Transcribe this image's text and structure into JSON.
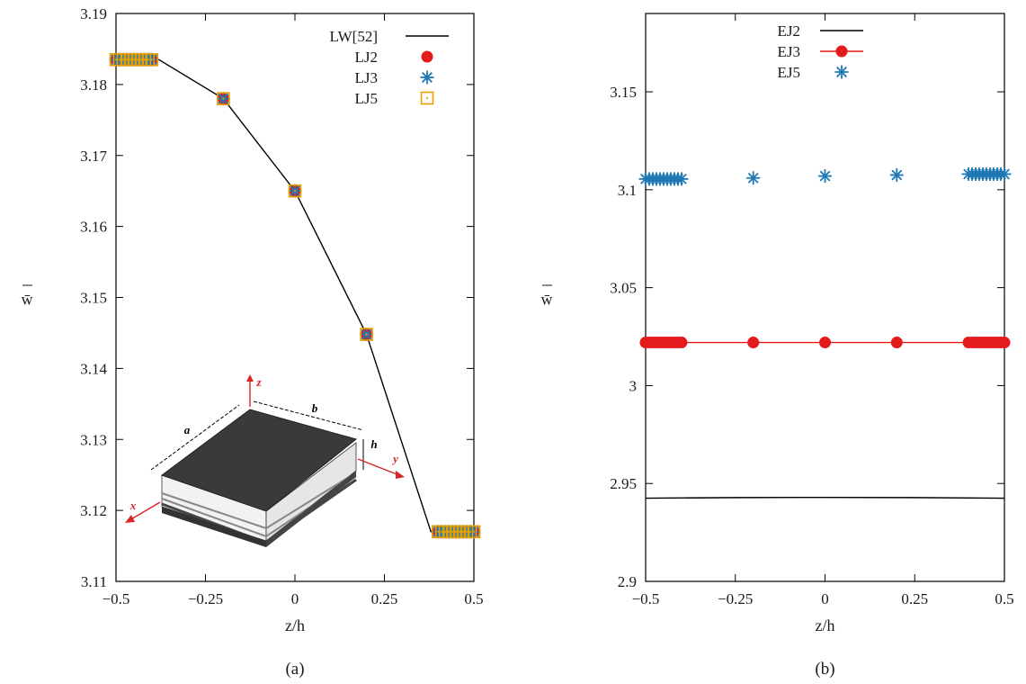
{
  "chart_data": [
    {
      "type": "line",
      "panel_label": "(a)",
      "xlabel": "z/h",
      "ylabel": "w̄",
      "xlim": [
        -0.5,
        0.5
      ],
      "ylim": [
        3.11,
        3.19
      ],
      "xticks": [
        -0.5,
        -0.25,
        0,
        0.25,
        0.5
      ],
      "xtick_labels": [
        "−0.5",
        "−0.25",
        "0",
        "0.25",
        "0.5"
      ],
      "yticks": [
        3.11,
        3.12,
        3.13,
        3.14,
        3.15,
        3.16,
        3.17,
        3.18,
        3.19
      ],
      "ytick_labels": [
        "3.11",
        "3.12",
        "3.13",
        "3.14",
        "3.15",
        "3.16",
        "3.17",
        "3.18",
        "3.19"
      ],
      "legend_position": "top-right",
      "grid": false,
      "series": [
        {
          "name": "LW[52]",
          "style": "line",
          "color": "#000000",
          "x": [
            -0.5,
            -0.38,
            -0.2,
            0,
            0.2,
            0.38,
            0.5
          ],
          "y": [
            3.1835,
            3.1835,
            3.178,
            3.165,
            3.1448,
            3.117,
            3.117
          ]
        },
        {
          "name": "LJ2",
          "style": "circle",
          "color": "#e41a1c",
          "x": [
            -0.5,
            -0.49,
            -0.48,
            -0.47,
            -0.46,
            -0.45,
            -0.44,
            -0.43,
            -0.42,
            -0.41,
            -0.4,
            -0.2,
            0,
            0.2,
            0.4,
            0.41,
            0.42,
            0.43,
            0.44,
            0.45,
            0.46,
            0.47,
            0.48,
            0.49,
            0.5
          ],
          "y": [
            3.1835,
            3.1835,
            3.1835,
            3.1835,
            3.1835,
            3.1835,
            3.1835,
            3.1835,
            3.1835,
            3.1835,
            3.1835,
            3.178,
            3.165,
            3.1448,
            3.117,
            3.117,
            3.117,
            3.117,
            3.117,
            3.117,
            3.117,
            3.117,
            3.117,
            3.117,
            3.117
          ]
        },
        {
          "name": "LJ3",
          "style": "asterisk",
          "color": "#1f78b4",
          "x": [
            -0.5,
            -0.49,
            -0.48,
            -0.47,
            -0.46,
            -0.45,
            -0.44,
            -0.43,
            -0.42,
            -0.41,
            -0.4,
            -0.2,
            0,
            0.2,
            0.4,
            0.41,
            0.42,
            0.43,
            0.44,
            0.45,
            0.46,
            0.47,
            0.48,
            0.49,
            0.5
          ],
          "y": [
            3.1835,
            3.1835,
            3.1835,
            3.1835,
            3.1835,
            3.1835,
            3.1835,
            3.1835,
            3.1835,
            3.1835,
            3.1835,
            3.178,
            3.165,
            3.1448,
            3.117,
            3.117,
            3.117,
            3.117,
            3.117,
            3.117,
            3.117,
            3.117,
            3.117,
            3.117,
            3.117
          ]
        },
        {
          "name": "LJ5",
          "style": "square-dot",
          "color": "#e69f00",
          "x": [
            -0.5,
            -0.49,
            -0.48,
            -0.47,
            -0.46,
            -0.45,
            -0.44,
            -0.43,
            -0.42,
            -0.41,
            -0.4,
            -0.2,
            0,
            0.2,
            0.4,
            0.41,
            0.42,
            0.43,
            0.44,
            0.45,
            0.46,
            0.47,
            0.48,
            0.49,
            0.5
          ],
          "y": [
            3.1835,
            3.1835,
            3.1835,
            3.1835,
            3.1835,
            3.1835,
            3.1835,
            3.1835,
            3.1835,
            3.1835,
            3.1835,
            3.178,
            3.165,
            3.1448,
            3.117,
            3.117,
            3.117,
            3.117,
            3.117,
            3.117,
            3.117,
            3.117,
            3.117,
            3.117,
            3.117
          ]
        }
      ],
      "inset": {
        "labels": [
          "z",
          "b",
          "a",
          "h",
          "y",
          "x"
        ]
      }
    },
    {
      "type": "line",
      "panel_label": "(b)",
      "xlabel": "z/h",
      "ylabel": "w̄",
      "xlim": [
        -0.5,
        0.5
      ],
      "ylim": [
        2.9,
        3.19
      ],
      "xticks": [
        -0.5,
        -0.25,
        0,
        0.25,
        0.5
      ],
      "xtick_labels": [
        "−0.5",
        "−0.25",
        "0",
        "0.25",
        "0.5"
      ],
      "yticks": [
        2.9,
        2.95,
        3.0,
        3.05,
        3.1,
        3.15
      ],
      "ytick_labels": [
        "2.9",
        "2.95",
        "3",
        "3.05",
        "3.1",
        "3.15"
      ],
      "legend_position": "top-left",
      "grid": false,
      "series": [
        {
          "name": "EJ2",
          "style": "line",
          "color": "#000000",
          "x": [
            -0.5,
            -0.25,
            0,
            0.25,
            0.5
          ],
          "y": [
            2.9425,
            2.9428,
            2.9429,
            2.9428,
            2.9425
          ]
        },
        {
          "name": "EJ3",
          "style": "line-circle",
          "color": "#e41a1c",
          "x": [
            -0.5,
            -0.49,
            -0.48,
            -0.47,
            -0.46,
            -0.45,
            -0.44,
            -0.43,
            -0.42,
            -0.41,
            -0.4,
            -0.2,
            0,
            0.2,
            0.4,
            0.41,
            0.42,
            0.43,
            0.44,
            0.45,
            0.46,
            0.47,
            0.48,
            0.49,
            0.5
          ],
          "y": [
            3.022,
            3.022,
            3.022,
            3.022,
            3.022,
            3.022,
            3.022,
            3.022,
            3.022,
            3.022,
            3.022,
            3.022,
            3.022,
            3.022,
            3.022,
            3.022,
            3.022,
            3.022,
            3.022,
            3.022,
            3.022,
            3.022,
            3.022,
            3.022,
            3.022
          ]
        },
        {
          "name": "EJ5",
          "style": "asterisk",
          "color": "#1f78b4",
          "x": [
            -0.5,
            -0.49,
            -0.48,
            -0.47,
            -0.46,
            -0.45,
            -0.44,
            -0.43,
            -0.42,
            -0.41,
            -0.4,
            -0.2,
            0,
            0.2,
            0.4,
            0.41,
            0.42,
            0.43,
            0.44,
            0.45,
            0.46,
            0.47,
            0.48,
            0.49,
            0.5
          ],
          "y": [
            3.1055,
            3.1055,
            3.1055,
            3.1055,
            3.1055,
            3.1055,
            3.1055,
            3.1055,
            3.1055,
            3.1055,
            3.1055,
            3.106,
            3.107,
            3.1075,
            3.108,
            3.108,
            3.108,
            3.108,
            3.108,
            3.108,
            3.108,
            3.108,
            3.108,
            3.108,
            3.108
          ]
        }
      ]
    }
  ]
}
